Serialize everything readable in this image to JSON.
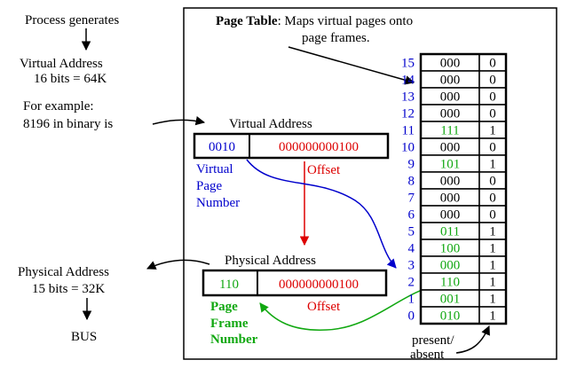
{
  "process": {
    "line1": "Process    generates",
    "line2": "Virtual    Address",
    "line3": "16  bits = 64K"
  },
  "example": {
    "line1": "For    example:",
    "line2": "8196  in  binary  is"
  },
  "physical_note": {
    "line1": "Physical    Address",
    "line2": "15  bits = 32K",
    "bus": "BUS"
  },
  "page_table_caption": {
    "bold": "Page Table",
    "rest": ":  Maps  virtual  pages  onto",
    "line2": "page   frames."
  },
  "virtual_address": {
    "heading": "Virtual     Address",
    "page_bits": "0010",
    "offset_bits": "000000000100",
    "offset_label": "Offset",
    "vpn_label_1": "Virtual",
    "vpn_label_2": "Page",
    "vpn_label_3": "Number"
  },
  "physical_address": {
    "heading": "Physical     Address",
    "frame_bits": "110",
    "offset_bits": "000000000100",
    "offset_label": "Offset",
    "pfn_label_1": "Page",
    "pfn_label_2": "Frame",
    "pfn_label_3": "Number"
  },
  "page_table": {
    "rows": [
      {
        "index": "15",
        "frame": "000",
        "bit": "0",
        "present": false
      },
      {
        "index": "14",
        "frame": "000",
        "bit": "0",
        "present": false
      },
      {
        "index": "13",
        "frame": "000",
        "bit": "0",
        "present": false
      },
      {
        "index": "12",
        "frame": "000",
        "bit": "0",
        "present": false
      },
      {
        "index": "11",
        "frame": "111",
        "bit": "1",
        "present": true
      },
      {
        "index": "10",
        "frame": "000",
        "bit": "0",
        "present": false
      },
      {
        "index": "9",
        "frame": "101",
        "bit": "1",
        "present": true
      },
      {
        "index": "8",
        "frame": "000",
        "bit": "0",
        "present": false
      },
      {
        "index": "7",
        "frame": "000",
        "bit": "0",
        "present": false
      },
      {
        "index": "6",
        "frame": "000",
        "bit": "0",
        "present": false
      },
      {
        "index": "5",
        "frame": "011",
        "bit": "1",
        "present": true
      },
      {
        "index": "4",
        "frame": "100",
        "bit": "1",
        "present": true
      },
      {
        "index": "3",
        "frame": "000",
        "bit": "1",
        "present": true
      },
      {
        "index": "2",
        "frame": "110",
        "bit": "1",
        "present": true
      },
      {
        "index": "1",
        "frame": "001",
        "bit": "1",
        "present": true
      },
      {
        "index": "0",
        "frame": "010",
        "bit": "1",
        "present": true
      }
    ],
    "present_label_1": "present/",
    "present_label_2": "absent"
  },
  "colors": {
    "virtual": "#0000cc",
    "offset": "#dd0000",
    "physical": "#11a811",
    "text": "#000000"
  }
}
